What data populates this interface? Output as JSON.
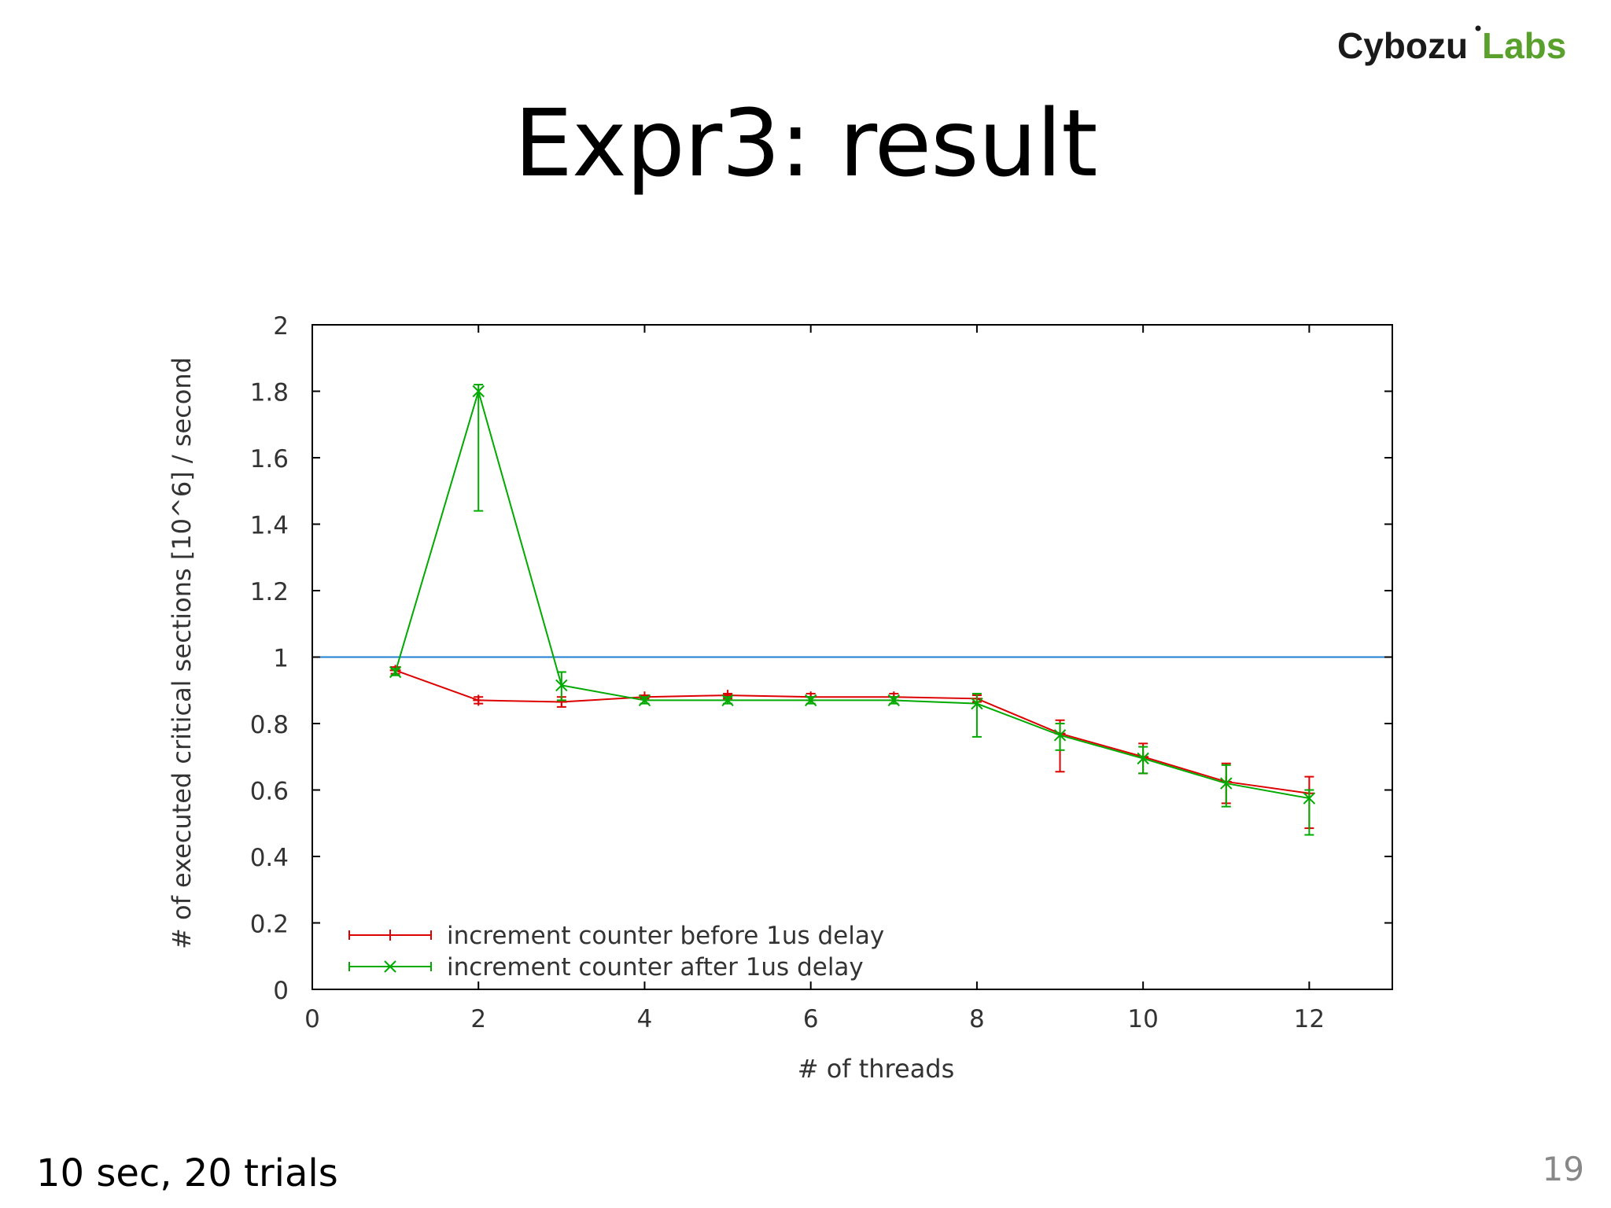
{
  "brand": {
    "part1": "Cybozu",
    "part2": "Labs",
    "color_dark": "#1a1a1a",
    "color_green": "#5aa02c"
  },
  "slide": {
    "title": "Expr3: result",
    "note": "10 sec, 20 trials",
    "page_number": "19"
  },
  "chart_data": {
    "type": "line",
    "xlabel": "# of threads",
    "ylabel": "# of executed critical sections [10^6] / second",
    "xlim": [
      0,
      13
    ],
    "ylim": [
      0,
      2
    ],
    "xticks": [
      0,
      2,
      4,
      6,
      8,
      10,
      12
    ],
    "yticks": [
      0,
      0.2,
      0.4,
      0.6,
      0.8,
      1,
      1.2,
      1.4,
      1.6,
      1.8,
      2
    ],
    "grid": false,
    "legend_position": "bottom-left",
    "reference_line": {
      "y": 1,
      "color": "#1f7fd0"
    },
    "series": [
      {
        "name": "increment counter before 1us delay",
        "color": "#dd0000",
        "marker": "+",
        "x": [
          1,
          2,
          3,
          4,
          5,
          6,
          7,
          8,
          9,
          10,
          11,
          12
        ],
        "y": [
          0.96,
          0.87,
          0.865,
          0.88,
          0.885,
          0.88,
          0.88,
          0.875,
          0.77,
          0.7,
          0.625,
          0.59
        ],
        "err_low": [
          0.95,
          0.86,
          0.85,
          0.875,
          0.875,
          0.87,
          0.87,
          0.865,
          0.655,
          0.65,
          0.56,
          0.485
        ],
        "err_high": [
          0.97,
          0.88,
          0.88,
          0.885,
          0.89,
          0.89,
          0.89,
          0.885,
          0.81,
          0.74,
          0.68,
          0.64
        ]
      },
      {
        "name": "increment counter after 1us delay",
        "color": "#00aa00",
        "marker": "x",
        "x": [
          1,
          2,
          3,
          4,
          5,
          6,
          7,
          8,
          9,
          10,
          11,
          12
        ],
        "y": [
          0.955,
          1.8,
          0.915,
          0.87,
          0.87,
          0.87,
          0.87,
          0.86,
          0.765,
          0.695,
          0.62,
          0.575
        ],
        "err_low": [
          0.945,
          1.44,
          0.87,
          0.86,
          0.86,
          0.86,
          0.86,
          0.76,
          0.72,
          0.65,
          0.55,
          0.465
        ],
        "err_high": [
          0.965,
          1.82,
          0.955,
          0.88,
          0.88,
          0.88,
          0.88,
          0.89,
          0.8,
          0.73,
          0.675,
          0.6
        ]
      }
    ]
  }
}
